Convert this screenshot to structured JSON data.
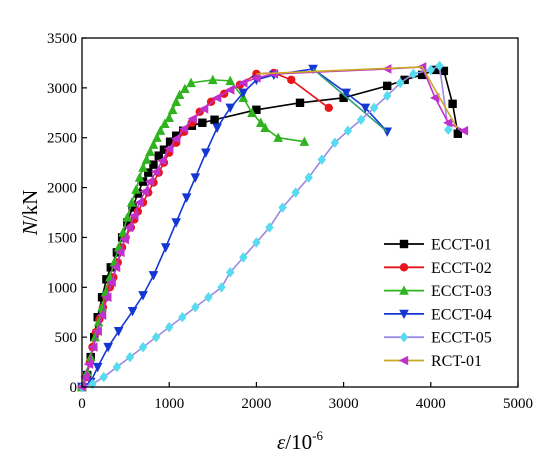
{
  "chart_data": {
    "type": "line",
    "title": "",
    "xlabel": {
      "symbol": "ε",
      "unit": "/10",
      "exp": "-6"
    },
    "ylabel": {
      "symbol": "N",
      "unit": "/kN"
    },
    "xlim": [
      0,
      5000
    ],
    "ylim": [
      0,
      3500
    ],
    "x_ticks": [
      0,
      1000,
      2000,
      3000,
      4000,
      5000
    ],
    "y_ticks": [
      0,
      500,
      1000,
      1500,
      2000,
      2500,
      3000,
      3500
    ],
    "grid": false,
    "legend_position": "right",
    "series": [
      {
        "name": "ECCT-01",
        "color": "#000000",
        "marker": "square",
        "points": [
          [
            0,
            0
          ],
          [
            60,
            120
          ],
          [
            100,
            300
          ],
          [
            140,
            500
          ],
          [
            180,
            700
          ],
          [
            230,
            900
          ],
          [
            280,
            1080
          ],
          [
            330,
            1200
          ],
          [
            400,
            1350
          ],
          [
            460,
            1500
          ],
          [
            520,
            1650
          ],
          [
            580,
            1800
          ],
          [
            640,
            1940
          ],
          [
            700,
            2060
          ],
          [
            760,
            2150
          ],
          [
            820,
            2230
          ],
          [
            880,
            2320
          ],
          [
            940,
            2380
          ],
          [
            1010,
            2460
          ],
          [
            1080,
            2520
          ],
          [
            1160,
            2570
          ],
          [
            1260,
            2620
          ],
          [
            1380,
            2650
          ],
          [
            1520,
            2680
          ],
          [
            2000,
            2780
          ],
          [
            2500,
            2850
          ],
          [
            3000,
            2900
          ],
          [
            3500,
            3020
          ],
          [
            3700,
            3080
          ],
          [
            3900,
            3130
          ],
          [
            4050,
            3180
          ],
          [
            4150,
            3170
          ],
          [
            4250,
            2840
          ],
          [
            4310,
            2540
          ]
        ]
      },
      {
        "name": "ECCT-02",
        "color": "#e8151b",
        "marker": "circle",
        "points": [
          [
            0,
            0
          ],
          [
            50,
            100
          ],
          [
            90,
            250
          ],
          [
            120,
            400
          ],
          [
            160,
            550
          ],
          [
            200,
            680
          ],
          [
            240,
            800
          ],
          [
            280,
            900
          ],
          [
            320,
            1000
          ],
          [
            360,
            1100
          ],
          [
            410,
            1250
          ],
          [
            460,
            1400
          ],
          [
            500,
            1500
          ],
          [
            560,
            1600
          ],
          [
            600,
            1680
          ],
          [
            640,
            1760
          ],
          [
            700,
            1850
          ],
          [
            760,
            1950
          ],
          [
            820,
            2050
          ],
          [
            880,
            2150
          ],
          [
            940,
            2250
          ],
          [
            1000,
            2350
          ],
          [
            1080,
            2450
          ],
          [
            1170,
            2560
          ],
          [
            1260,
            2650
          ],
          [
            1350,
            2760
          ],
          [
            1480,
            2860
          ],
          [
            1630,
            2940
          ],
          [
            1810,
            3030
          ],
          [
            2000,
            3140
          ],
          [
            2200,
            3150
          ],
          [
            2400,
            3080
          ],
          [
            2830,
            2800
          ]
        ]
      },
      {
        "name": "ECCT-03",
        "color": "#2fb31f",
        "marker": "triangle-up",
        "points": [
          [
            0,
            0
          ],
          [
            60,
            150
          ],
          [
            100,
            300
          ],
          [
            150,
            500
          ],
          [
            190,
            650
          ],
          [
            230,
            800
          ],
          [
            270,
            950
          ],
          [
            320,
            1100
          ],
          [
            370,
            1250
          ],
          [
            420,
            1400
          ],
          [
            470,
            1550
          ],
          [
            520,
            1700
          ],
          [
            570,
            1850
          ],
          [
            620,
            1980
          ],
          [
            660,
            2100
          ],
          [
            700,
            2200
          ],
          [
            740,
            2280
          ],
          [
            780,
            2360
          ],
          [
            820,
            2430
          ],
          [
            860,
            2500
          ],
          [
            900,
            2570
          ],
          [
            950,
            2640
          ],
          [
            1000,
            2700
          ],
          [
            1040,
            2780
          ],
          [
            1080,
            2860
          ],
          [
            1120,
            2930
          ],
          [
            1180,
            2990
          ],
          [
            1250,
            3050
          ],
          [
            1500,
            3080
          ],
          [
            1700,
            3070
          ],
          [
            1850,
            2900
          ],
          [
            1950,
            2750
          ],
          [
            2050,
            2650
          ],
          [
            2100,
            2600
          ],
          [
            2250,
            2500
          ],
          [
            2550,
            2460
          ]
        ]
      },
      {
        "name": "ECCT-04",
        "color": "#1436d2",
        "marker": "triangle-down",
        "points": [
          [
            0,
            0
          ],
          [
            100,
            50
          ],
          [
            180,
            200
          ],
          [
            300,
            400
          ],
          [
            420,
            560
          ],
          [
            580,
            760
          ],
          [
            700,
            920
          ],
          [
            820,
            1120
          ],
          [
            960,
            1400
          ],
          [
            1080,
            1650
          ],
          [
            1200,
            1900
          ],
          [
            1300,
            2100
          ],
          [
            1420,
            2350
          ],
          [
            1550,
            2600
          ],
          [
            1700,
            2800
          ],
          [
            1850,
            2950
          ],
          [
            2000,
            3080
          ],
          [
            2200,
            3130
          ],
          [
            2650,
            3190
          ],
          [
            3030,
            2950
          ],
          [
            3250,
            2800
          ],
          [
            3500,
            2560
          ]
        ]
      },
      {
        "name": "ECCT-05",
        "color": "#2f9e82",
        "marker": "none",
        "points": [
          [
            2650,
            3190
          ],
          [
            3500,
            2560
          ]
        ]
      },
      {
        "name": "ECCT-05",
        "color": "#9b8ae6",
        "marker": "diamond",
        "points": [
          [
            0,
            0
          ],
          [
            120,
            30
          ],
          [
            250,
            100
          ],
          [
            400,
            200
          ],
          [
            550,
            300
          ],
          [
            700,
            400
          ],
          [
            850,
            500
          ],
          [
            1000,
            600
          ],
          [
            1150,
            700
          ],
          [
            1300,
            800
          ],
          [
            1450,
            900
          ],
          [
            1600,
            1000
          ],
          [
            1700,
            1150
          ],
          [
            1850,
            1300
          ],
          [
            2000,
            1450
          ],
          [
            2150,
            1600
          ],
          [
            2300,
            1800
          ],
          [
            2450,
            1950
          ],
          [
            2600,
            2100
          ],
          [
            2750,
            2280
          ],
          [
            2900,
            2450
          ],
          [
            3050,
            2570
          ],
          [
            3200,
            2680
          ],
          [
            3350,
            2800
          ],
          [
            3500,
            2920
          ],
          [
            3650,
            3050
          ],
          [
            3800,
            3140
          ],
          [
            4000,
            3180
          ],
          [
            4100,
            3220
          ],
          [
            4200,
            2580
          ]
        ]
      },
      {
        "name": "RCT-01",
        "color": "#c030cc",
        "marker": "triangle-left",
        "points": [
          [
            0,
            0
          ],
          [
            40,
            100
          ],
          [
            80,
            230
          ],
          [
            130,
            400
          ],
          [
            180,
            560
          ],
          [
            230,
            720
          ],
          [
            290,
            900
          ],
          [
            340,
            1050
          ],
          [
            390,
            1200
          ],
          [
            440,
            1350
          ],
          [
            490,
            1480
          ],
          [
            540,
            1600
          ],
          [
            600,
            1720
          ],
          [
            660,
            1850
          ],
          [
            720,
            1960
          ],
          [
            780,
            2060
          ],
          [
            850,
            2160
          ],
          [
            920,
            2270
          ],
          [
            1000,
            2390
          ],
          [
            1080,
            2490
          ],
          [
            1170,
            2590
          ],
          [
            1270,
            2690
          ],
          [
            1400,
            2790
          ],
          [
            1550,
            2900
          ],
          [
            1700,
            2980
          ],
          [
            1850,
            3050
          ],
          [
            2000,
            3100
          ],
          [
            2200,
            3140
          ],
          [
            3500,
            3190
          ],
          [
            3900,
            3210
          ],
          [
            4050,
            2900
          ],
          [
            4200,
            2650
          ],
          [
            4380,
            2570
          ]
        ]
      },
      {
        "name": "RCT-01",
        "color": "#c9a825",
        "marker": "none",
        "points": [
          [
            2000,
            3140
          ],
          [
            3900,
            3210
          ],
          [
            4300,
            2600
          ]
        ]
      }
    ],
    "legend": [
      {
        "label": "ECCT-01",
        "color": "#000000",
        "marker": "square"
      },
      {
        "label": "ECCT-02",
        "color": "#e8151b",
        "marker": "circle"
      },
      {
        "label": "ECCT-03",
        "color": "#2fb31f",
        "marker": "triangle-up"
      },
      {
        "label": "ECCT-04",
        "color": "#1436d2",
        "marker": "triangle-down"
      },
      {
        "label": "ECCT-05",
        "color": "#56dcef",
        "line_color": "#9b8ae6",
        "marker": "diamond"
      },
      {
        "label": "RCT-01",
        "color": "#c030cc",
        "line_color": "#c9a825",
        "marker": "triangle-left"
      }
    ]
  }
}
